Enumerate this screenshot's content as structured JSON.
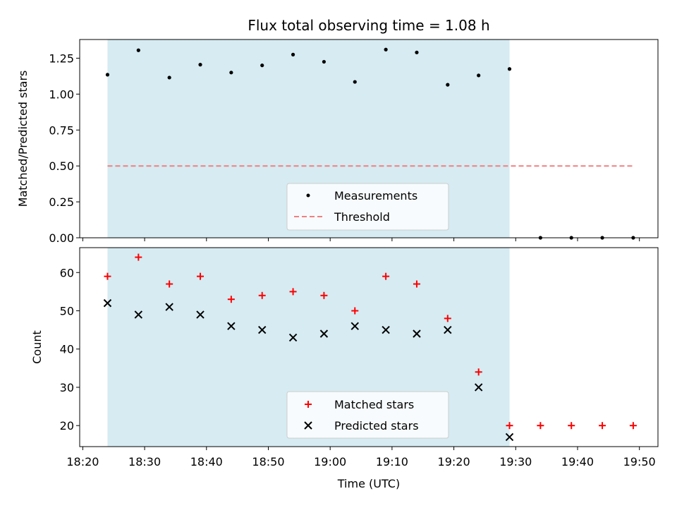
{
  "chart_data": [
    {
      "type": "scatter",
      "title": "Flux total observing time = 1.08 h",
      "ylabel": "Matched/Predicted stars",
      "xlabel": "",
      "ylim": [
        0.0,
        1.38
      ],
      "xlim": [
        "18:19:30",
        "19:53:00"
      ],
      "yticks": [
        "0.00",
        "0.25",
        "0.50",
        "0.75",
        "1.00",
        "1.25"
      ],
      "shaded_range": [
        "18:24",
        "19:29"
      ],
      "shade_color": "#add8e6",
      "series": [
        {
          "name": "Measurements",
          "color": "#000000",
          "marker": "dot",
          "x": [
            "18:24",
            "18:29",
            "18:34",
            "18:39",
            "18:44",
            "18:49",
            "18:54",
            "18:59",
            "19:04",
            "19:09",
            "19:14",
            "19:19",
            "19:24",
            "19:29",
            "19:34",
            "19:39",
            "19:44",
            "19:49"
          ],
          "y": [
            1.135,
            1.305,
            1.115,
            1.205,
            1.15,
            1.2,
            1.275,
            1.225,
            1.085,
            1.31,
            1.29,
            1.065,
            1.13,
            1.175,
            0.0,
            0.0,
            0.0,
            0.0
          ]
        },
        {
          "name": "Threshold",
          "color": "#f08080",
          "style": "dashed",
          "x": [
            "18:24",
            "19:49"
          ],
          "y": [
            0.5,
            0.5
          ]
        }
      ],
      "legend": "lower-center"
    },
    {
      "type": "scatter",
      "xlabel": "Time (UTC)",
      "ylabel": "Count",
      "ylim": [
        14.5,
        66.5
      ],
      "xlim": [
        "18:19:30",
        "19:53:00"
      ],
      "yticks": [
        "20",
        "30",
        "40",
        "50",
        "60"
      ],
      "xticks": [
        "18:20",
        "18:30",
        "18:40",
        "18:50",
        "19:00",
        "19:10",
        "19:20",
        "19:30",
        "19:40",
        "19:50"
      ],
      "shaded_range": [
        "18:24",
        "19:29"
      ],
      "shade_color": "#add8e6",
      "series": [
        {
          "name": "Matched stars",
          "color": "#ff0000",
          "marker": "plus",
          "x": [
            "18:24",
            "18:29",
            "18:34",
            "18:39",
            "18:44",
            "18:49",
            "18:54",
            "18:59",
            "19:04",
            "19:09",
            "19:14",
            "19:19",
            "19:24",
            "19:29",
            "19:34",
            "19:39",
            "19:44",
            "19:49"
          ],
          "y": [
            59,
            64,
            57,
            59,
            53,
            54,
            55,
            54,
            50,
            59,
            57,
            48,
            34,
            20,
            20,
            20,
            20,
            20
          ]
        },
        {
          "name": "Predicted stars",
          "color": "#000000",
          "marker": "x",
          "x": [
            "18:24",
            "18:29",
            "18:34",
            "18:39",
            "18:44",
            "18:49",
            "18:54",
            "18:59",
            "19:04",
            "19:09",
            "19:14",
            "19:19",
            "19:24",
            "19:29"
          ],
          "y": [
            52,
            49,
            51,
            49,
            46,
            45,
            43,
            44,
            46,
            45,
            44,
            45,
            30,
            17
          ]
        }
      ],
      "legend": "lower-center"
    }
  ]
}
